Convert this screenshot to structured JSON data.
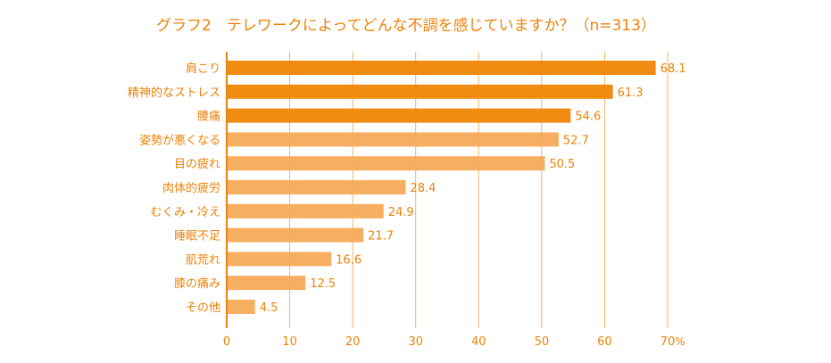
{
  "chart_data": {
    "type": "bar",
    "orientation": "horizontal",
    "title": "グラフ2　テレワークによってどんな不調を感じていますか？（n=313）",
    "categories": [
      "肩こり",
      "精神的なストレス",
      "腰痛",
      "姿勢が悪くなる",
      "目の疲れ",
      "肉体的疲労",
      "むくみ・冷え",
      "睡眠不足",
      "肌荒れ",
      "膝の痛み",
      "その他"
    ],
    "values": [
      68.1,
      61.3,
      54.6,
      52.7,
      50.5,
      28.4,
      24.9,
      21.7,
      16.6,
      12.5,
      4.5
    ],
    "value_labels": [
      "68.1",
      "61.3",
      "54.6",
      "52.7",
      "50.5",
      "28.4",
      "24.9",
      "21.7",
      "16.6",
      "12.5",
      "4.5"
    ],
    "highlight_count": 3,
    "xlim": [
      0,
      70
    ],
    "xticks": [
      "0",
      "10",
      "20",
      "30",
      "40",
      "50",
      "60",
      "70"
    ],
    "xunit": "%",
    "grid": true,
    "colors": {
      "highlight": "#F08300",
      "normal": "#F5A855",
      "text": "#EE8208",
      "grid": "#F5B46A"
    }
  }
}
